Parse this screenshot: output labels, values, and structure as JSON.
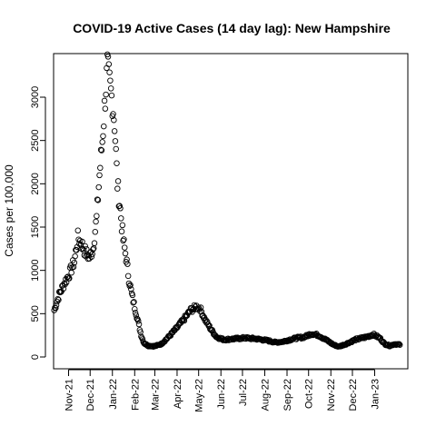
{
  "chart_data": {
    "type": "scatter",
    "title": "COVID-19 Active Cases (14 day lag): New Hampshire",
    "ylabel": "Cases per 100,000",
    "xlabel": "",
    "ylim": [
      -60,
      3450
    ],
    "y_ticks": [
      0,
      500,
      1000,
      1500,
      2000,
      2500,
      3000
    ],
    "x_ticks": [
      "Nov-21",
      "Dec-21",
      "Jan-22",
      "Feb-22",
      "Mar-22",
      "Apr-22",
      "May-22",
      "Jun-22",
      "Jul-22",
      "Aug-22",
      "Sep-22",
      "Oct-22",
      "Nov-22",
      "Dec-22",
      "Jan-23"
    ],
    "marker": "open-circle",
    "grid": false,
    "series_color": "#000000",
    "key_points": [
      [
        "2021-10-12",
        540
      ],
      [
        "2021-10-19",
        720
      ],
      [
        "2021-10-26",
        850
      ],
      [
        "2021-11-02",
        960
      ],
      [
        "2021-11-09",
        1100
      ],
      [
        "2021-11-14",
        1380
      ],
      [
        "2021-11-20",
        1290
      ],
      [
        "2021-11-25",
        1200
      ],
      [
        "2021-11-30",
        1150
      ],
      [
        "2021-12-05",
        1250
      ],
      [
        "2021-12-10",
        1600
      ],
      [
        "2021-12-14",
        2100
      ],
      [
        "2021-12-18",
        2500
      ],
      [
        "2021-12-22",
        3000
      ],
      [
        "2021-12-25",
        3350
      ],
      [
        "2021-12-28",
        3150
      ],
      [
        "2022-01-01",
        2950
      ],
      [
        "2022-01-04",
        2700
      ],
      [
        "2022-01-08",
        2000
      ],
      [
        "2022-01-12",
        1700
      ],
      [
        "2022-01-16",
        1350
      ],
      [
        "2022-01-20",
        1150
      ],
      [
        "2022-01-24",
        900
      ],
      [
        "2022-01-28",
        720
      ],
      [
        "2022-02-02",
        540
      ],
      [
        "2022-02-06",
        400
      ],
      [
        "2022-02-10",
        250
      ],
      [
        "2022-02-14",
        160
      ],
      [
        "2022-02-20",
        130
      ],
      [
        "2022-03-01",
        125
      ],
      [
        "2022-03-10",
        150
      ],
      [
        "2022-03-20",
        230
      ],
      [
        "2022-03-30",
        320
      ],
      [
        "2022-04-10",
        430
      ],
      [
        "2022-04-20",
        540
      ],
      [
        "2022-04-28",
        580
      ],
      [
        "2022-05-03",
        560
      ],
      [
        "2022-05-10",
        430
      ],
      [
        "2022-05-18",
        320
      ],
      [
        "2022-05-26",
        230
      ],
      [
        "2022-06-05",
        200
      ],
      [
        "2022-06-20",
        210
      ],
      [
        "2022-07-05",
        220
      ],
      [
        "2022-07-20",
        210
      ],
      [
        "2022-08-05",
        190
      ],
      [
        "2022-08-15",
        170
      ],
      [
        "2022-08-25",
        175
      ],
      [
        "2022-09-05",
        200
      ],
      [
        "2022-09-15",
        220
      ],
      [
        "2022-09-25",
        230
      ],
      [
        "2022-10-05",
        270
      ],
      [
        "2022-10-15",
        250
      ],
      [
        "2022-10-25",
        200
      ],
      [
        "2022-11-05",
        140
      ],
      [
        "2022-11-12",
        120
      ],
      [
        "2022-11-22",
        150
      ],
      [
        "2022-12-05",
        200
      ],
      [
        "2022-12-20",
        230
      ],
      [
        "2022-12-30",
        260
      ],
      [
        "2023-01-08",
        220
      ],
      [
        "2023-01-15",
        150
      ],
      [
        "2023-01-22",
        130
      ],
      [
        "2023-01-29",
        150
      ],
      [
        "2023-02-05",
        140
      ]
    ]
  }
}
